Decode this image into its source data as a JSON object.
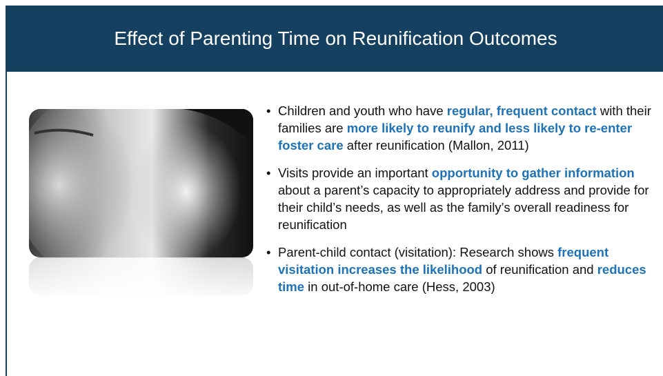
{
  "header": {
    "title": "Effect of Parenting Time on Reunification Outcomes"
  },
  "highlight_color": "#1f72b8",
  "bullets": [
    [
      "Children and youth who have ",
      "regular, frequent contact",
      " with their families are ",
      "more likely to reunify and less likely to re-enter foster care",
      " after reunification (Mallon, 2011)"
    ],
    [
      "Visits provide an important ",
      "opportunity to gather information",
      " about a parent’s capacity to appropriately address and provide for their child’s needs, as well as the family’s overall readiness for reunification"
    ],
    [
      "Parent-child contact (visitation): Research shows ",
      "frequent visitation increases the likelihood",
      " of reunification and ",
      "reduces time",
      " in out-of-home care (Hess, 2003)"
    ]
  ]
}
